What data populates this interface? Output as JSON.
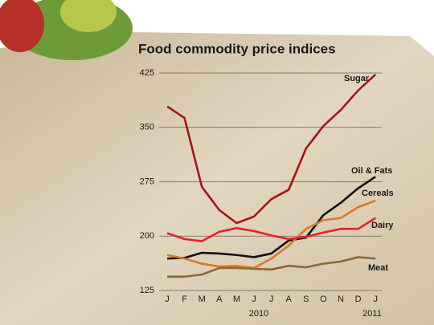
{
  "chart_data": {
    "type": "line",
    "title": "Food commodity price indices",
    "categories": [
      "J",
      "F",
      "M",
      "A",
      "M",
      "J",
      "J",
      "A",
      "S",
      "O",
      "N",
      "D",
      "J"
    ],
    "x_group_labels": [
      "2010",
      "2011"
    ],
    "ylim": [
      125,
      425
    ],
    "yticks": [
      125,
      200,
      275,
      350,
      425
    ],
    "grid": true,
    "series": [
      {
        "name": "Sugar",
        "color": "#a3151b",
        "values": [
          379,
          363,
          268,
          236,
          218,
          227,
          251,
          264,
          321,
          352,
          374,
          401,
          423
        ]
      },
      {
        "name": "Oil & Fats",
        "color": "#111111",
        "values": [
          169,
          170,
          177,
          176,
          174,
          171,
          176,
          194,
          198,
          229,
          246,
          266,
          282
        ]
      },
      {
        "name": "Cereals",
        "color": "#d9782a",
        "values": [
          174,
          169,
          162,
          158,
          159,
          156,
          169,
          187,
          210,
          222,
          225,
          240,
          249
        ]
      },
      {
        "name": "Dairy",
        "color": "#e0232a",
        "values": [
          204,
          196,
          193,
          206,
          211,
          207,
          201,
          196,
          199,
          205,
          210,
          210,
          225
        ]
      },
      {
        "name": "Meat",
        "color": "#8a6a3a",
        "values": [
          144,
          144,
          147,
          156,
          156,
          155,
          154,
          159,
          157,
          162,
          165,
          171,
          169
        ]
      }
    ]
  }
}
